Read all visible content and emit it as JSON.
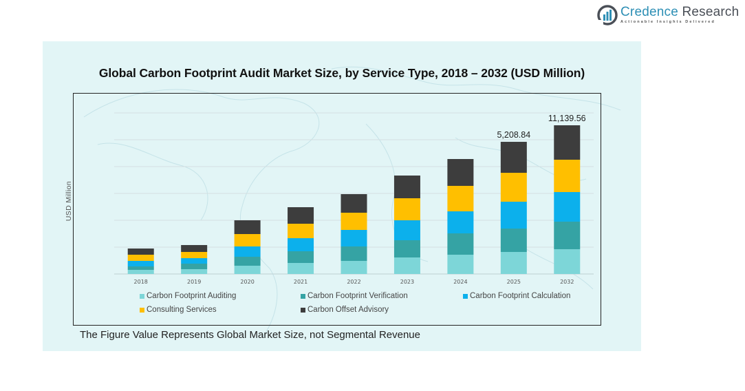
{
  "brand": {
    "name_part1": "Credence",
    "name_part2": " Research",
    "tagline": "Actionable Insights Delivered",
    "icon": "bar-chart-logo-icon"
  },
  "footnote": "The Figure Value Represents Global Market Size, not Segmental Revenue",
  "colors": {
    "Carbon Footprint Auditing": "#7dd6d8",
    "Carbon Footprint Verification": "#35a3a4",
    "Carbon Footprint Calculation": "#0cb0ec",
    "Consulting Services": "#ffbf00",
    "Carbon Offset Advisory": "#3d3d3d"
  },
  "chart_data": {
    "type": "bar",
    "stacked": true,
    "title": "Global Carbon Footprint Audit Market Size, by Service Type, 2018 – 2032 (USD Million)",
    "xlabel": "",
    "ylabel": "USD Million",
    "ylim": [
      0,
      12500
    ],
    "grid": true,
    "legend_position": "bottom",
    "categories": [
      "2018",
      "2019",
      "2020",
      "2021",
      "2022",
      "2023",
      "2024",
      "2025",
      "2032"
    ],
    "series": [
      {
        "name": "Carbon Footprint Auditing",
        "values": [
          309,
          361,
          619,
          825,
          980,
          1238,
          1444,
          1650,
          1857
        ]
      },
      {
        "name": "Carbon Footprint Verification",
        "values": [
          258,
          413,
          670,
          877,
          1083,
          1289,
          1599,
          1753,
          2063
        ]
      },
      {
        "name": "Carbon Footprint Calculation",
        "values": [
          413,
          413,
          774,
          980,
          1238,
          1496,
          1650,
          2011,
          2217
        ]
      },
      {
        "name": "Consulting Services",
        "values": [
          464,
          464,
          928,
          1083,
          1289,
          1650,
          1908,
          2166,
          2424
        ]
      },
      {
        "name": "Carbon Offset Advisory",
        "values": [
          464,
          516,
          1031,
          1238,
          1392,
          1702,
          2011,
          2321,
          2578
        ]
      }
    ],
    "data_labels": [
      {
        "category": "2025",
        "text": "5,208.84"
      },
      {
        "category": "2032",
        "text": "11,139.56"
      }
    ]
  }
}
